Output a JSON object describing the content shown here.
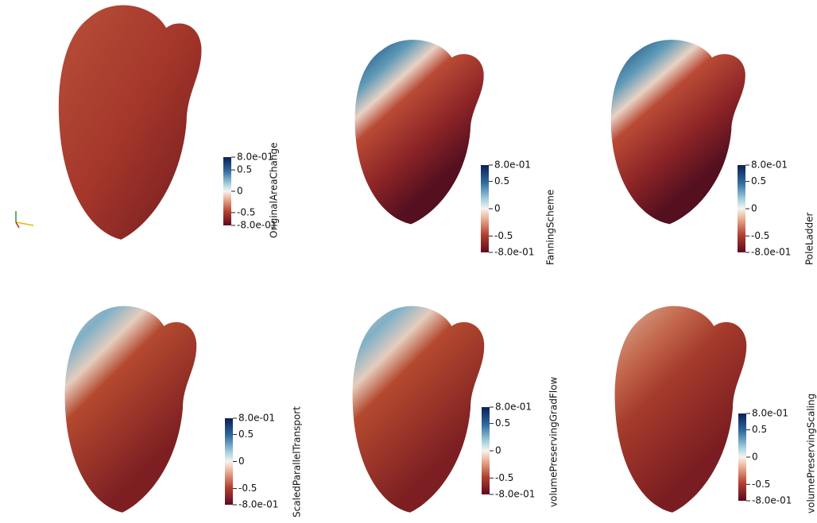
{
  "panels": [
    {
      "title": "OriginalAreaChange",
      "range": [
        -0.8,
        0.8
      ],
      "ticks": [
        {
          "value": 0.8,
          "label": "8.0e-01"
        },
        0.5,
        0,
        -0.5,
        {
          "value": -0.8,
          "label": "-8.0e-01"
        }
      ]
    },
    {
      "title": "FanningScheme",
      "range": [
        -0.8,
        0.8
      ],
      "ticks": [
        {
          "value": 0.8,
          "label": "8.0e-01"
        },
        0.5,
        0,
        -0.5,
        {
          "value": -0.8,
          "label": "-8.0e-01"
        }
      ]
    },
    {
      "title": "PoleLadder",
      "range": [
        -0.8,
        0.8
      ],
      "ticks": [
        {
          "value": 0.8,
          "label": "8.0e-01"
        },
        0.5,
        0,
        -0.5,
        {
          "value": -0.8,
          "label": "-8.0e-01"
        }
      ]
    },
    {
      "title": "ScaledParallelTransport",
      "range": [
        -0.8,
        0.8
      ],
      "ticks": [
        {
          "value": 0.8,
          "label": "8.0e-01"
        },
        0.5,
        0,
        -0.5,
        {
          "value": -0.8,
          "label": "-8.0e-01"
        }
      ]
    },
    {
      "title": "volumePreservingGradFlow",
      "range": [
        -0.8,
        0.8
      ],
      "ticks": [
        {
          "value": 0.8,
          "label": "8.0e-01"
        },
        0.5,
        0,
        -0.5,
        {
          "value": -0.8,
          "label": "-8.0e-01"
        }
      ]
    },
    {
      "title": "volumePreservingScaling",
      "range": [
        -0.8,
        0.8
      ],
      "ticks": [
        {
          "value": 0.8,
          "label": "8.0e-01"
        },
        0.5,
        0,
        -0.5,
        {
          "value": -0.8,
          "label": "-8.0e-01"
        }
      ]
    }
  ]
}
